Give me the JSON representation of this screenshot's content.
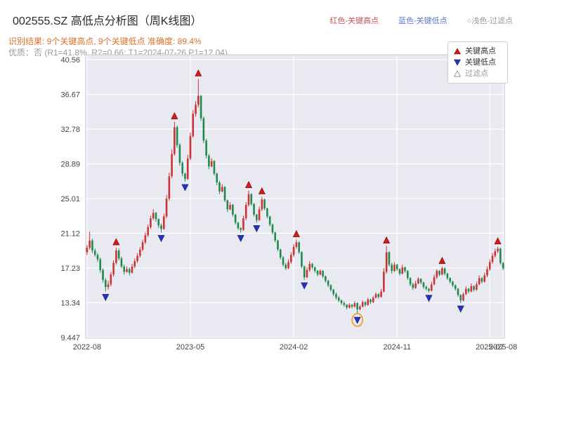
{
  "title": "002555.SZ 高低点分析图（周K线图）",
  "header_legend": {
    "high_label": "红色-关键高点",
    "low_label": "蓝色-关键低点",
    "filter_label": "○浅色-过滤点",
    "high_color": "#c25555",
    "low_color": "#5b79c9",
    "filter_color": "#999999"
  },
  "result_line": "识别结果: 9个关键高点, 9个关键低点  准确度: 89.4%",
  "quality_line": "优质：否 (R1=41.8%, R2=0.66; T1=2024-07-26 P1=12.04)",
  "legend": {
    "items": [
      {
        "label": "关键高点",
        "marker": "up-triangle",
        "color": "#d11a1a"
      },
      {
        "label": "关键低点",
        "marker": "down-triangle",
        "color": "#2334bb"
      },
      {
        "label": "过滤点",
        "marker": "open-triangle",
        "color": "#9a9a9a"
      }
    ]
  },
  "chart_data": {
    "type": "candlestick",
    "symbol": "002555.SZ",
    "interval": "weekly",
    "title": "002555.SZ 高低点分析图（周K线图）",
    "ylim": [
      9.37,
      41.11
    ],
    "value_range": [
      9.37,
      41.11
    ],
    "grid": true,
    "y_ticks": [
      {
        "label": "40.56",
        "value": 40.56
      },
      {
        "label": "36.67",
        "value": 36.67
      },
      {
        "label": "32.78",
        "value": 32.78
      },
      {
        "label": "28.89",
        "value": 28.89
      },
      {
        "label": "25.01",
        "value": 25.01
      },
      {
        "label": "21.12",
        "value": 21.12
      },
      {
        "label": "17.23",
        "value": 17.23
      },
      {
        "label": "13.34",
        "value": 13.34
      },
      {
        "label": "9.447",
        "value": 9.447
      }
    ],
    "x_ticks": [
      {
        "label": "2022-08",
        "week": 0
      },
      {
        "label": "2023-05",
        "week": 39
      },
      {
        "label": "2024-02",
        "week": 78
      },
      {
        "label": "2024-11",
        "week": 117
      },
      {
        "label": "2025-07",
        "week": 152
      },
      {
        "label": "2025-08",
        "week": 157
      }
    ],
    "colors": {
      "up": "#cc3333",
      "down": "#1f8a4d",
      "background": "#e9e9f2",
      "grid": "#ffffff",
      "key_high": "#d11a1a",
      "key_low": "#2334bb",
      "highlight": "#f0a232"
    },
    "open": [
      19.0,
      19.5,
      20.3,
      19.2,
      18.7,
      18.2,
      17.0,
      15.9,
      15.1,
      15.4,
      16.5,
      17.8,
      19.2,
      18.3,
      17.4,
      16.8,
      17.1,
      16.7,
      17.4,
      18.0,
      18.6,
      19.3,
      20.1,
      20.9,
      21.8,
      22.8,
      23.4,
      22.7,
      22.0,
      21.6,
      23.0,
      25.0,
      27.5,
      30.0,
      33.0,
      31.0,
      29.0,
      27.8,
      27.2,
      29.5,
      32.0,
      34.5,
      35.5,
      36.5,
      34.0,
      31.5,
      29.8,
      28.6,
      29.2,
      27.8,
      26.8,
      25.8,
      26.3,
      24.8,
      23.8,
      24.3,
      23.2,
      22.3,
      21.7,
      21.5,
      22.8,
      24.3,
      25.5,
      24.4,
      23.2,
      22.6,
      23.8,
      24.9,
      23.9,
      23.0,
      22.1,
      21.2,
      20.3,
      19.3,
      18.4,
      17.6,
      17.2,
      17.9,
      18.7,
      19.6,
      20.1,
      19.0,
      17.4,
      16.2,
      17.0,
      17.7,
      17.3,
      16.9,
      16.5,
      16.9,
      16.3,
      15.8,
      15.3,
      14.8,
      14.3,
      13.9,
      13.6,
      13.3,
      13.1,
      12.8,
      13.1,
      12.9,
      13.3,
      12.6,
      12.9,
      13.4,
      13.1,
      13.7,
      13.4,
      13.9,
      14.3,
      14.0,
      14.6,
      16.8,
      19.0,
      17.6,
      16.9,
      17.6,
      17.1,
      16.6,
      17.3,
      16.9,
      16.1,
      15.4,
      15.0,
      15.5,
      16.0,
      15.6,
      15.1,
      14.9,
      14.7,
      15.4,
      16.2,
      16.9,
      16.5,
      17.2,
      16.6,
      16.1,
      15.7,
      15.3,
      14.9,
      14.2,
      13.6,
      14.3,
      14.9,
      14.6,
      15.2,
      14.8,
      15.4,
      16.1,
      15.7,
      16.4,
      17.1,
      17.9,
      18.6,
      19.1,
      19.4,
      17.8
    ],
    "high": [
      19.8,
      21.3,
      20.5,
      19.4,
      18.9,
      18.4,
      17.2,
      16.1,
      15.8,
      16.8,
      18.1,
      19.5,
      19.4,
      18.5,
      17.6,
      17.4,
      17.3,
      17.7,
      18.3,
      18.9,
      19.6,
      20.4,
      21.2,
      22.1,
      23.1,
      23.8,
      23.5,
      22.8,
      22.2,
      23.3,
      25.4,
      27.9,
      30.5,
      33.6,
      33.2,
      31.2,
      29.2,
      27.9,
      29.9,
      32.4,
      34.9,
      35.9,
      38.4,
      36.6,
      34.2,
      31.7,
      30.0,
      29.5,
      29.3,
      27.9,
      27.0,
      26.6,
      26.4,
      24.9,
      24.6,
      24.4,
      23.3,
      22.4,
      21.8,
      23.1,
      24.6,
      25.9,
      25.6,
      24.5,
      23.3,
      24.1,
      25.2,
      25.0,
      24.0,
      23.1,
      22.2,
      21.3,
      20.4,
      19.4,
      18.6,
      17.8,
      18.2,
      19.0,
      19.9,
      20.4,
      20.2,
      19.1,
      17.5,
      17.3,
      18.0,
      17.8,
      17.4,
      17.0,
      17.1,
      17.0,
      16.4,
      15.9,
      15.4,
      14.9,
      14.5,
      14.1,
      13.7,
      13.5,
      13.2,
      13.3,
      13.2,
      13.5,
      13.4,
      13.1,
      13.6,
      13.5,
      13.9,
      13.8,
      14.1,
      14.5,
      14.4,
      14.9,
      17.2,
      19.7,
      19.1,
      17.8,
      17.9,
      17.7,
      17.2,
      17.6,
      17.4,
      17.0,
      16.2,
      15.6,
      15.8,
      16.2,
      16.1,
      15.7,
      15.3,
      15.0,
      15.7,
      16.5,
      17.1,
      17.0,
      17.4,
      17.3,
      16.7,
      16.2,
      15.8,
      15.4,
      15.0,
      14.3,
      14.5,
      15.2,
      15.0,
      15.5,
      15.3,
      15.7,
      16.4,
      16.2,
      16.7,
      17.4,
      18.2,
      18.9,
      19.4,
      19.6,
      19.5,
      17.9
    ],
    "low": [
      18.7,
      19.3,
      18.9,
      18.5,
      17.9,
      16.7,
      15.6,
      14.6,
      14.8,
      15.2,
      16.3,
      17.6,
      18.1,
      17.2,
      16.5,
      16.7,
      16.4,
      16.6,
      17.2,
      17.8,
      18.4,
      19.1,
      19.9,
      20.7,
      21.6,
      22.6,
      22.4,
      21.7,
      21.2,
      21.5,
      22.8,
      24.8,
      27.3,
      29.8,
      30.7,
      28.7,
      27.5,
      26.9,
      27.1,
      29.3,
      31.8,
      34.2,
      35.2,
      33.7,
      31.2,
      29.5,
      28.3,
      28.5,
      27.6,
      26.5,
      25.5,
      25.7,
      24.6,
      23.5,
      23.7,
      23.0,
      22.1,
      21.5,
      21.2,
      21.4,
      22.6,
      24.1,
      24.2,
      23.0,
      22.3,
      22.5,
      23.6,
      23.7,
      22.8,
      21.9,
      21.0,
      20.1,
      19.1,
      18.2,
      17.4,
      17.0,
      17.1,
      17.7,
      18.5,
      19.4,
      18.8,
      17.2,
      15.9,
      16.1,
      16.8,
      17.1,
      16.7,
      16.3,
      16.4,
      16.1,
      15.6,
      15.1,
      14.6,
      14.1,
      13.7,
      13.4,
      13.1,
      12.9,
      12.6,
      12.7,
      12.7,
      12.8,
      12.04,
      12.5,
      12.8,
      12.9,
      13.0,
      13.2,
      13.3,
      13.8,
      13.8,
      13.9,
      14.5,
      16.6,
      17.4,
      16.6,
      16.8,
      16.9,
      16.4,
      16.5,
      16.7,
      15.9,
      15.2,
      14.8,
      14.9,
      15.4,
      15.4,
      14.9,
      14.7,
      14.5,
      14.6,
      15.3,
      16.0,
      16.3,
      16.4,
      16.4,
      15.9,
      15.5,
      15.1,
      14.7,
      14.0,
      13.3,
      13.5,
      14.2,
      14.4,
      14.5,
      14.6,
      14.7,
      15.3,
      15.5,
      15.6,
      16.2,
      16.9,
      17.7,
      18.4,
      18.9,
      17.6,
      17.0
    ],
    "close": [
      19.5,
      20.3,
      19.2,
      18.7,
      18.2,
      17.0,
      15.9,
      15.1,
      15.4,
      16.5,
      17.8,
      19.2,
      18.3,
      17.4,
      16.8,
      17.1,
      16.7,
      17.4,
      18.0,
      18.6,
      19.3,
      20.1,
      20.9,
      21.8,
      22.8,
      23.4,
      22.7,
      22.0,
      21.6,
      23.0,
      25.0,
      27.5,
      30.0,
      33.0,
      31.0,
      29.0,
      27.8,
      27.2,
      29.5,
      32.0,
      34.5,
      35.5,
      36.5,
      34.0,
      31.5,
      29.8,
      28.6,
      29.2,
      27.8,
      26.8,
      25.8,
      26.3,
      24.8,
      23.8,
      24.3,
      23.2,
      22.3,
      21.7,
      21.5,
      22.8,
      24.3,
      25.5,
      24.4,
      23.2,
      22.6,
      23.8,
      24.9,
      23.9,
      23.0,
      22.1,
      21.2,
      20.3,
      19.3,
      18.4,
      17.6,
      17.2,
      17.9,
      18.7,
      19.6,
      20.1,
      19.0,
      17.4,
      16.2,
      17.0,
      17.7,
      17.3,
      16.9,
      16.5,
      16.9,
      16.3,
      15.8,
      15.3,
      14.8,
      14.3,
      13.9,
      13.6,
      13.3,
      13.1,
      12.8,
      13.1,
      12.9,
      13.3,
      12.6,
      12.9,
      13.4,
      13.1,
      13.7,
      13.4,
      13.9,
      14.3,
      14.0,
      14.6,
      16.8,
      19.0,
      17.6,
      16.9,
      17.6,
      17.1,
      16.6,
      17.3,
      16.9,
      16.1,
      15.4,
      15.0,
      15.5,
      16.0,
      15.6,
      15.1,
      14.9,
      14.7,
      15.4,
      16.2,
      16.9,
      16.5,
      17.2,
      16.6,
      16.1,
      15.7,
      15.3,
      14.9,
      14.2,
      13.6,
      14.3,
      14.9,
      14.6,
      15.2,
      14.8,
      15.4,
      16.1,
      15.7,
      16.4,
      17.1,
      17.9,
      18.6,
      19.1,
      19.4,
      17.8,
      17.2
    ],
    "key_highs": [
      {
        "week": 11,
        "price": 19.5
      },
      {
        "week": 33,
        "price": 33.6
      },
      {
        "week": 42,
        "price": 38.4
      },
      {
        "week": 61,
        "price": 25.9
      },
      {
        "week": 66,
        "price": 25.2
      },
      {
        "week": 79,
        "price": 20.4
      },
      {
        "week": 113,
        "price": 19.7
      },
      {
        "week": 134,
        "price": 17.4
      },
      {
        "week": 155,
        "price": 19.6
      }
    ],
    "key_lows": [
      {
        "week": 7,
        "price": 14.6
      },
      {
        "week": 28,
        "price": 21.2
      },
      {
        "week": 37,
        "price": 26.9
      },
      {
        "week": 58,
        "price": 21.2
      },
      {
        "week": 64,
        "price": 22.3
      },
      {
        "week": 82,
        "price": 15.9
      },
      {
        "week": 102,
        "price": 12.04
      },
      {
        "week": 129,
        "price": 14.5
      },
      {
        "week": 141,
        "price": 13.3
      }
    ],
    "highlight": {
      "week": 102,
      "price": 12.04,
      "note": "T1=2024-07-26 P1=12.04",
      "color": "#f0a232"
    }
  }
}
